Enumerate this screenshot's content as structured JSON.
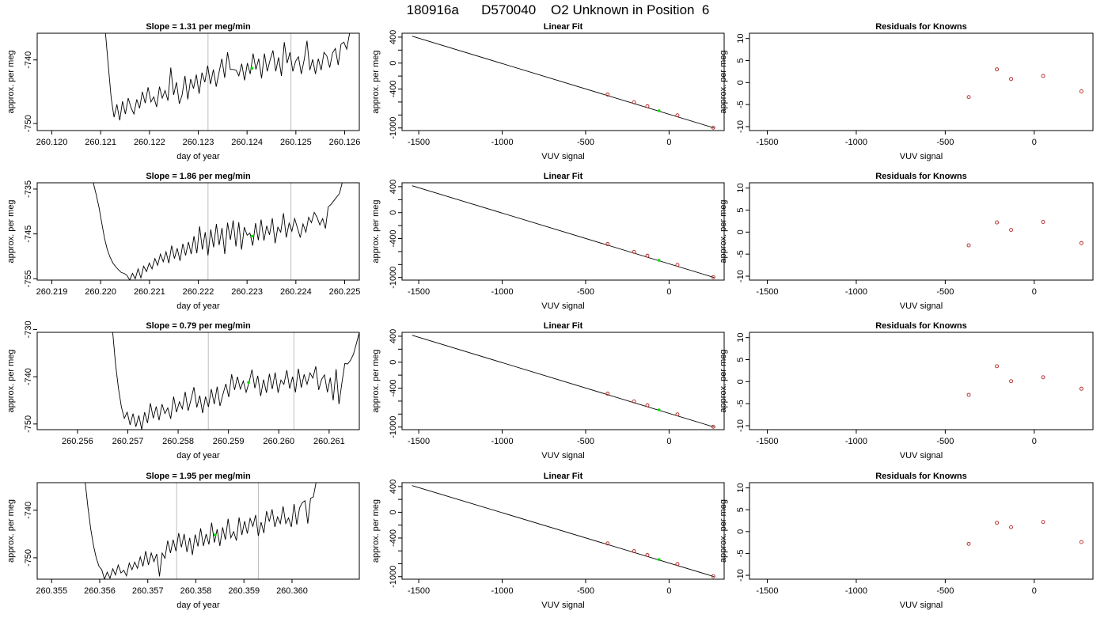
{
  "figure_title": "180916a      D570040    O2 Unknown in Position  6",
  "colors": {
    "trace": "#000000",
    "marker": "#00dd00",
    "knowns": "#b22222",
    "vline": "#bebebe",
    "frame": "#000000"
  },
  "chart_data": [
    {
      "type": "line",
      "role": "trace",
      "title": "Slope =  1.31  per meg/min",
      "xlabel": "day of year",
      "ylabel": "approx. per meg",
      "xlim": [
        260.1197,
        260.1263
      ],
      "ylim": [
        -751.1,
        -735.8
      ],
      "xticks": [
        260.12,
        260.121,
        260.122,
        260.123,
        260.124,
        260.125,
        260.126
      ],
      "xtick_labels": [
        "260.120",
        "260.121",
        "260.122",
        "260.123",
        "260.124",
        "260.125",
        "260.126"
      ],
      "yticks": [
        -740,
        -750
      ],
      "ytick_labels": [
        "-740",
        "-750"
      ],
      "vlines": [
        260.1232,
        260.1249
      ],
      "marker": {
        "x": 260.1241,
        "y": -741.3
      },
      "trace": {
        "x_start": 260.1211,
        "x_end": 260.1261,
        "y": [
          -735.8,
          -741,
          -746,
          -749,
          -747,
          -749.5,
          -746.5,
          -748.5,
          -746,
          -747.5,
          -748.5,
          -746.2,
          -747.6,
          -745,
          -746.8,
          -744.3,
          -746.6,
          -745.8,
          -747.4,
          -744.2,
          -746,
          -744.8,
          -746.4,
          -741.2,
          -745.5,
          -743.5,
          -746.9,
          -745.5,
          -742.5,
          -746.2,
          -743,
          -744.5,
          -742.3,
          -745.3,
          -742,
          -743.5,
          -740.9,
          -743.8,
          -741.5,
          -744.2,
          -742,
          -739.8,
          -742.8,
          -738.8,
          -741.5,
          -741.5,
          -741.6,
          -742.5,
          -740.6,
          -743.2,
          -740.5,
          -742.2,
          -739,
          -741.5,
          -739.8,
          -742.9,
          -739,
          -741.8,
          -740,
          -738.5,
          -741.8,
          -739.6,
          -742.5,
          -737.2,
          -740.5,
          -738.8,
          -741.8,
          -740.2,
          -739.5,
          -742.2,
          -740,
          -737,
          -741.6,
          -739.9,
          -742.2,
          -739.8,
          -741.6,
          -738.8,
          -739.4,
          -741.2,
          -738.9,
          -738.2,
          -740.8,
          -737.5,
          -737.2,
          -738.3,
          -735.8
        ]
      }
    },
    {
      "type": "line",
      "role": "fit",
      "title": "Linear Fit",
      "xlabel": "VUV signal",
      "ylabel": "approx. per meg",
      "xlim": [
        -1600,
        330
      ],
      "ylim": [
        -1040,
        460
      ],
      "xticks": [
        -1500,
        -1000,
        -500,
        0
      ],
      "xtick_labels": [
        "-1500",
        "-1000",
        "-500",
        "0"
      ],
      "yticks": [
        400,
        0,
        -400,
        -1000
      ],
      "ytick_labels": [
        "400",
        "0",
        "-400",
        "-1000"
      ],
      "yticks_minor": [
        200,
        -200,
        -600,
        -800
      ],
      "line": {
        "x": [
          -1540,
          270
        ],
        "y": [
          415,
          -1000
        ]
      },
      "knowns": {
        "x": [
          -368,
          -210,
          -130,
          50,
          265
        ],
        "y": [
          -485,
          -605,
          -665,
          -805,
          -995
        ]
      },
      "unknown": {
        "x": -60,
        "y": -735
      }
    },
    {
      "type": "scatter",
      "role": "residuals",
      "title": "Residuals for Knowns",
      "xlabel": "VUV signal",
      "ylabel": "approx. per meg",
      "xlim": [
        -1600,
        330
      ],
      "ylim": [
        -10.9,
        11.2
      ],
      "xticks": [
        -1500,
        -1000,
        -500,
        0
      ],
      "xtick_labels": [
        "-1500",
        "-1000",
        "-500",
        "0"
      ],
      "yticks": [
        10,
        5,
        0,
        -5,
        -10
      ],
      "ytick_labels": [
        "10",
        "5",
        "0",
        "-5",
        "-10"
      ],
      "x": [
        -368,
        -210,
        -130,
        50,
        265
      ],
      "y": [
        -3.3,
        3.0,
        0.8,
        1.5,
        -2.0
      ]
    },
    {
      "type": "line",
      "role": "trace",
      "title": "Slope =  1.86  per meg/min",
      "xlabel": "day of year",
      "ylabel": "approx. per meg",
      "xlim": [
        260.2187,
        260.2253
      ],
      "ylim": [
        -755.3,
        -733.6
      ],
      "xticks": [
        260.219,
        260.22,
        260.221,
        260.222,
        260.223,
        260.224,
        260.225
      ],
      "xtick_labels": [
        "260.219",
        "260.220",
        "260.221",
        "260.222",
        "260.223",
        "260.224",
        "260.225"
      ],
      "yticks": [
        -735,
        -745,
        -755
      ],
      "ytick_labels": [
        "-735",
        "-745",
        "-755"
      ],
      "vlines": [
        260.2222,
        260.2239
      ],
      "marker": {
        "x": 260.2231,
        "y": -745.5
      },
      "trace": {
        "x_start": 260.21985,
        "x_end": 260.22495,
        "y": [
          -733.6,
          -736.2,
          -739,
          -742.5,
          -746,
          -748.5,
          -750.2,
          -751.5,
          -752.3,
          -753,
          -753.6,
          -753.8,
          -754.2,
          -755.3,
          -753.8,
          -755,
          -752.8,
          -754.8,
          -752.2,
          -753.4,
          -751.5,
          -752.8,
          -750.5,
          -752,
          -749.5,
          -751.2,
          -749,
          -751.5,
          -747.6,
          -750.5,
          -748.2,
          -751,
          -747.2,
          -749.8,
          -746.8,
          -749.5,
          -745.5,
          -749.3,
          -743.3,
          -748.5,
          -744.6,
          -749.8,
          -744,
          -748,
          -742.8,
          -747.5,
          -743.7,
          -749.5,
          -742.5,
          -746.3,
          -742,
          -747.8,
          -742.4,
          -748.5,
          -743.5,
          -745.3,
          -744.8,
          -747.6,
          -742.6,
          -746.4,
          -741.8,
          -746.5,
          -743.2,
          -745.2,
          -741.5,
          -747.1,
          -743.5,
          -744.6,
          -740.4,
          -745.8,
          -742.6,
          -744.4,
          -741.6,
          -743.7,
          -745.8,
          -742.8,
          -744.6,
          -741.3,
          -742.5,
          -740.2,
          -741.3,
          -743,
          -741.6,
          -743.8,
          -739,
          -738.4,
          -737.6,
          -736.8,
          -736,
          -733.6
        ]
      }
    },
    {
      "type": "line",
      "role": "fit",
      "title": "Linear Fit",
      "xlabel": "VUV signal",
      "ylabel": "approx. per meg",
      "xlim": [
        -1600,
        330
      ],
      "ylim": [
        -1040,
        460
      ],
      "xticks": [
        -1500,
        -1000,
        -500,
        0
      ],
      "xtick_labels": [
        "-1500",
        "-1000",
        "-500",
        "0"
      ],
      "yticks": [
        400,
        0,
        -400,
        -1000
      ],
      "ytick_labels": [
        "400",
        "0",
        "-400",
        "-1000"
      ],
      "yticks_minor": [
        200,
        -200,
        -600,
        -800
      ],
      "line": {
        "x": [
          -1540,
          270
        ],
        "y": [
          415,
          -1000
        ]
      },
      "knowns": {
        "x": [
          -368,
          -210,
          -130,
          50,
          265
        ],
        "y": [
          -485,
          -605,
          -665,
          -805,
          -995
        ]
      },
      "unknown": {
        "x": -60,
        "y": -735
      }
    },
    {
      "type": "scatter",
      "role": "residuals",
      "title": "Residuals for Knowns",
      "xlabel": "VUV signal",
      "ylabel": "approx. per meg",
      "xlim": [
        -1600,
        330
      ],
      "ylim": [
        -10.9,
        11.2
      ],
      "xticks": [
        -1500,
        -1000,
        -500,
        0
      ],
      "xtick_labels": [
        "-1500",
        "-1000",
        "-500",
        "0"
      ],
      "yticks": [
        10,
        5,
        0,
        -5,
        -10
      ],
      "ytick_labels": [
        "10",
        "5",
        "0",
        "-5",
        "-10"
      ],
      "x": [
        -368,
        -210,
        -130,
        50,
        265
      ],
      "y": [
        -3.0,
        2.2,
        0.5,
        2.3,
        -2.5
      ]
    },
    {
      "type": "line",
      "role": "trace",
      "title": "Slope =  0.79  per meg/min",
      "xlabel": "day of year",
      "ylabel": "approx. per meg",
      "xlim": [
        260.2552,
        260.2616
      ],
      "ylim": [
        -751.2,
        -730.6
      ],
      "xticks": [
        260.256,
        260.257,
        260.258,
        260.259,
        260.26,
        260.261
      ],
      "xtick_labels": [
        "260.256",
        "260.257",
        "260.258",
        "260.259",
        "260.260",
        "260.261"
      ],
      "yticks": [
        -730,
        -740,
        -750
      ],
      "ytick_labels": [
        "-730",
        "-740",
        "-750"
      ],
      "vlines": [
        260.2586,
        260.2603
      ],
      "marker": {
        "x": 260.2594,
        "y": -741.2
      },
      "trace": {
        "x_start": 260.2567,
        "x_end": 260.2616,
        "y": [
          -730.6,
          -737.5,
          -742.5,
          -746.4,
          -748.8,
          -747.5,
          -750.2,
          -747.8,
          -750.6,
          -748.2,
          -751.2,
          -747.5,
          -749.8,
          -745.6,
          -748.8,
          -746.3,
          -749.2,
          -745.8,
          -747.8,
          -746.6,
          -748.9,
          -744.2,
          -747.5,
          -745.3,
          -746.8,
          -743.2,
          -747.2,
          -744.8,
          -742.2,
          -746.5,
          -744,
          -747.7,
          -744.2,
          -746.4,
          -742.6,
          -745.8,
          -742.1,
          -746.2,
          -743.7,
          -741.5,
          -744.3,
          -739.5,
          -742.8,
          -740,
          -742.6,
          -740.9,
          -743.3,
          -741.2,
          -738.5,
          -742.4,
          -739.8,
          -744.1,
          -740.6,
          -743.4,
          -739.4,
          -742.6,
          -739.1,
          -743.4,
          -740.7,
          -741.6,
          -738.6,
          -742.5,
          -740,
          -743.3,
          -738.3,
          -742.3,
          -739.5,
          -741.6,
          -739.2,
          -740.3,
          -737.8,
          -742.8,
          -740.6,
          -739.6,
          -743.3,
          -740.2,
          -745,
          -738.4,
          -745.8,
          -741.3,
          -737.2,
          -737.3,
          -736.5,
          -735.2,
          -733,
          -730.6
        ]
      }
    },
    {
      "type": "line",
      "role": "fit",
      "title": "Linear Fit",
      "xlabel": "VUV signal",
      "ylabel": "approx. per meg",
      "xlim": [
        -1600,
        330
      ],
      "ylim": [
        -1040,
        460
      ],
      "xticks": [
        -1500,
        -1000,
        -500,
        0
      ],
      "xtick_labels": [
        "-1500",
        "-1000",
        "-500",
        "0"
      ],
      "yticks": [
        400,
        0,
        -400,
        -1000
      ],
      "ytick_labels": [
        "400",
        "0",
        "-400",
        "-1000"
      ],
      "yticks_minor": [
        200,
        -200,
        -600,
        -800
      ],
      "line": {
        "x": [
          -1540,
          270
        ],
        "y": [
          415,
          -1000
        ]
      },
      "knowns": {
        "x": [
          -368,
          -210,
          -130,
          50,
          265
        ],
        "y": [
          -485,
          -605,
          -665,
          -805,
          -995
        ]
      },
      "unknown": {
        "x": -60,
        "y": -735
      }
    },
    {
      "type": "scatter",
      "role": "residuals",
      "title": "Residuals for Knowns",
      "xlabel": "VUV signal",
      "ylabel": "approx. per meg",
      "xlim": [
        -1600,
        330
      ],
      "ylim": [
        -10.9,
        11.2
      ],
      "xticks": [
        -1500,
        -1000,
        -500,
        0
      ],
      "xtick_labels": [
        "-1500",
        "-1000",
        "-500",
        "0"
      ],
      "yticks": [
        10,
        5,
        0,
        -5,
        -10
      ],
      "ytick_labels": [
        "10",
        "5",
        "0",
        "-5",
        "-10"
      ],
      "x": [
        -368,
        -210,
        -130,
        50,
        265
      ],
      "y": [
        -3.0,
        3.5,
        0.1,
        1.0,
        -1.6
      ]
    },
    {
      "type": "line",
      "role": "trace",
      "title": "Slope =  1.95  per meg/min",
      "xlabel": "day of year",
      "ylabel": "approx. per meg",
      "xlim": [
        260.3547,
        260.3614
      ],
      "ylim": [
        -754.5,
        -734.2
      ],
      "xticks": [
        260.355,
        260.356,
        260.357,
        260.358,
        260.359,
        260.36
      ],
      "xtick_labels": [
        "260.355",
        "260.356",
        "260.357",
        "260.358",
        "260.359",
        "260.360"
      ],
      "yticks": [
        -740,
        -750
      ],
      "ytick_labels": [
        "-740",
        "-750"
      ],
      "vlines": [
        260.3576,
        260.3593
      ],
      "marker": {
        "x": 260.3584,
        "y": -745.2
      },
      "trace": {
        "x_start": 260.3557,
        "x_end": 260.3605,
        "y": [
          -734.2,
          -739.5,
          -744,
          -747.5,
          -750,
          -751.8,
          -752.5,
          -754.5,
          -753,
          -754.3,
          -752.3,
          -753.6,
          -751.5,
          -753.2,
          -752.6,
          -753.8,
          -751.1,
          -752.5,
          -750.9,
          -752.2,
          -749.8,
          -751.8,
          -748.6,
          -751.5,
          -749,
          -750.8,
          -749.2,
          -753.9,
          -749,
          -750.1,
          -746.4,
          -749,
          -746.2,
          -748.6,
          -744.8,
          -747.8,
          -745,
          -748.8,
          -745.8,
          -749.4,
          -745.1,
          -747.6,
          -743.8,
          -747.5,
          -745,
          -747.2,
          -742.6,
          -746.8,
          -744,
          -747.5,
          -743.6,
          -746.2,
          -741.8,
          -745.8,
          -744.5,
          -746.4,
          -741.5,
          -745.2,
          -742.3,
          -744.9,
          -741.7,
          -743.4,
          -741,
          -745.4,
          -742.5,
          -744.8,
          -740.2,
          -742.4,
          -739.8,
          -743.5,
          -741.4,
          -742.8,
          -739.2,
          -742.8,
          -741.6,
          -743.5,
          -738.7,
          -743,
          -739.5,
          -738.4,
          -738,
          -742.8,
          -737.5,
          -737.2,
          -734.2
        ]
      }
    },
    {
      "type": "line",
      "role": "fit",
      "title": "Linear Fit",
      "xlabel": "VUV signal",
      "ylabel": "approx. per meg",
      "xlim": [
        -1600,
        330
      ],
      "ylim": [
        -1040,
        460
      ],
      "xticks": [
        -1500,
        -1000,
        -500,
        0
      ],
      "xtick_labels": [
        "-1500",
        "-1000",
        "-500",
        "0"
      ],
      "yticks": [
        400,
        0,
        -400,
        -1000
      ],
      "ytick_labels": [
        "400",
        "0",
        "-400",
        "-1000"
      ],
      "yticks_minor": [
        200,
        -200,
        -600,
        -800
      ],
      "line": {
        "x": [
          -1540,
          270
        ],
        "y": [
          415,
          -1000
        ]
      },
      "knowns": {
        "x": [
          -368,
          -210,
          -130,
          50,
          265
        ],
        "y": [
          -485,
          -605,
          -665,
          -805,
          -995
        ]
      },
      "unknown": {
        "x": -60,
        "y": -735
      }
    },
    {
      "type": "scatter",
      "role": "residuals",
      "title": "Residuals for Knowns",
      "xlabel": "VUV signal",
      "ylabel": "approx. per meg",
      "xlim": [
        -1600,
        330
      ],
      "ylim": [
        -10.9,
        11.2
      ],
      "xticks": [
        -1500,
        -1000,
        -500,
        0
      ],
      "xtick_labels": [
        "-1500",
        "-1000",
        "-500",
        "0"
      ],
      "yticks": [
        10,
        5,
        0,
        -5,
        -10
      ],
      "ytick_labels": [
        "10",
        "5",
        "0",
        "-5",
        "-10"
      ],
      "x": [
        -368,
        -210,
        -130,
        50,
        265
      ],
      "y": [
        -2.8,
        2.0,
        1.0,
        2.2,
        -2.4
      ]
    }
  ]
}
